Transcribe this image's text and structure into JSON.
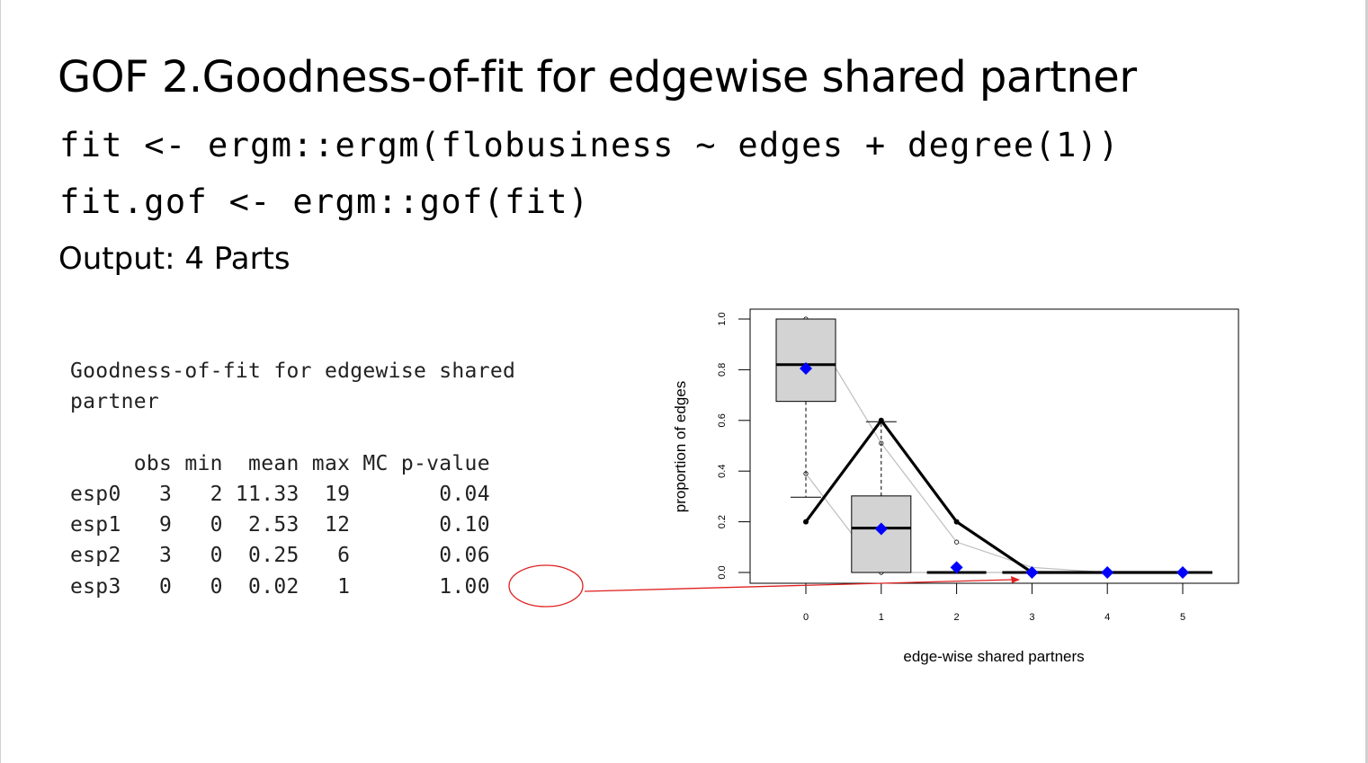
{
  "slide": {
    "title": "GOF 2.Goodness-of-fit for edgewise shared partner",
    "code_line1": "fit <- ergm::ergm(flobusiness ~ edges + degree(1))",
    "code_line2": "fit.gof <- ergm::gof(fit)",
    "subtitle": "Output: 4 Parts"
  },
  "output": {
    "heading1": "Goodness-of-fit for edgewise shared",
    "heading2": "partner",
    "header_row": "     obs min  mean max MC p-value",
    "rows": [
      "esp0   3   2 11.33  19       0.04",
      "esp1   9   0  2.53  12       0.10",
      "esp2   3   0  0.25   6       0.06",
      "esp3   0   0  0.02   1       1.00"
    ]
  },
  "chart_data": {
    "type": "boxplot",
    "xlabel": "edge-wise shared partners",
    "ylabel": "proportion of edges",
    "categories": [
      "0",
      "1",
      "2",
      "3",
      "4",
      "5"
    ],
    "yticks": [
      "0.0",
      "0.2",
      "0.4",
      "0.6",
      "0.8",
      "1.0"
    ],
    "ylim": [
      0,
      1
    ],
    "observed": [
      0.2,
      0.6,
      0.2,
      0.0,
      0.0,
      0.0
    ],
    "simulated_mean": [
      0.805,
      0.172,
      0.02,
      0.0,
      0.0,
      0.0
    ],
    "band_upper": [
      1.0,
      0.51,
      0.12,
      0.02,
      0.0,
      0.0
    ],
    "band_lower": [
      0.39,
      0.0,
      0.0,
      0.0,
      0.0,
      0.0
    ],
    "boxes": [
      {
        "q1": 0.675,
        "median": 0.82,
        "q3": 1.0,
        "whisker_low": 0.297,
        "whisker_high": 1.0
      },
      {
        "q1": 0.0,
        "median": 0.175,
        "q3": 0.302,
        "whisker_low": 0.0,
        "whisker_high": 0.595
      },
      {
        "q1": 0.0,
        "median": 0.0,
        "q3": 0.0,
        "whisker_low": 0.0,
        "whisker_high": 0.0
      },
      {
        "q1": 0.0,
        "median": 0.0,
        "q3": 0.0,
        "whisker_low": 0.0,
        "whisker_high": 0.0
      },
      {
        "q1": 0.0,
        "median": 0.0,
        "q3": 0.0,
        "whisker_low": 0.0,
        "whisker_high": 0.0
      },
      {
        "q1": 0.0,
        "median": 0.0,
        "q3": 0.0,
        "whisker_low": 0.0,
        "whisker_high": 0.0
      }
    ],
    "colors": {
      "mean_marker": "#0000ff",
      "annotation": "#ff0000",
      "box_fill": "#d3d3d3",
      "band_line": "#bebebe"
    }
  }
}
